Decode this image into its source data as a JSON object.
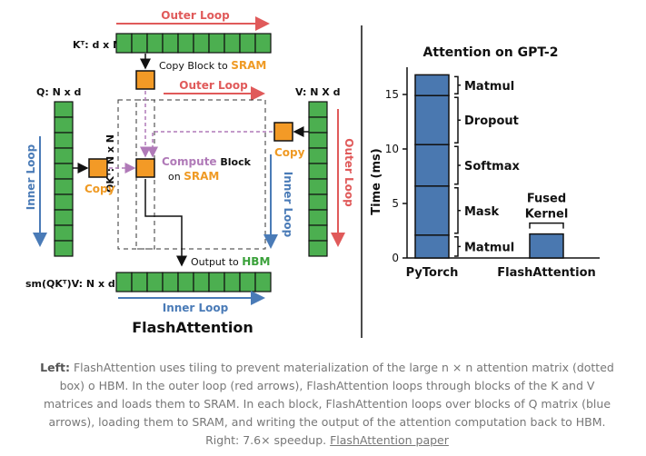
{
  "diagram": {
    "outer_loop_top": "Outer Loop",
    "outer_loop_mid": "Outer Loop",
    "outer_loop_right": "Outer Loop",
    "inner_loop_left": "Inner Loop",
    "inner_loop_right": "Inner Loop",
    "inner_loop_bottom": "Inner Loop",
    "kt_label": "Kᵀ: d x N",
    "q_label": "Q: N x d",
    "v_label": "V: N X d",
    "qkt_label": "QKᵀ: N x N",
    "output_label": "sm(QKᵀ)V: N x d",
    "copy_block_prefix": "Copy Block to ",
    "sram_word": "SRAM",
    "copy_left": "Copy",
    "copy_right": "Copy",
    "compute_word": "Compute",
    "block_word": " Block",
    "on_word": "on ",
    "sram_word2": "SRAM",
    "output_prefix": "Output to ",
    "hbm_word": "HBM",
    "title": "FlashAttention"
  },
  "chart_data": {
    "type": "bar",
    "title": "Attention on GPT-2",
    "ylabel": "Time (ms)",
    "ylim": [
      0,
      17.5
    ],
    "yticks": [
      0,
      5,
      10,
      15
    ],
    "categories": [
      "PyTorch",
      "FlashAttention"
    ],
    "stacks": [
      {
        "category": "PyTorch",
        "segments": [
          {
            "name": "Matmul",
            "value": 2.1
          },
          {
            "name": "Mask",
            "value": 4.5
          },
          {
            "name": "Softmax",
            "value": 3.8
          },
          {
            "name": "Dropout",
            "value": 4.5
          },
          {
            "name": "Matmul",
            "value": 1.9
          }
        ]
      },
      {
        "category": "FlashAttention",
        "segments": [
          {
            "name": "Fused Kernel",
            "value": 2.2
          }
        ]
      }
    ],
    "fused_label_line1": "Fused",
    "fused_label_line2": "Kernel",
    "bar_color": "#4a78b0"
  },
  "caption": {
    "left_bold": "Left:",
    "text": " FlashAttention uses tiling to prevent materialization of the large n × n attention matrix (dotted box) o HBM. In the outer loop (red arrows), FlashAttention loops through blocks of the K and V matrices and loads them to SRAM. In each block, FlashAttention loops over blocks of Q matrix (blue arrows), loading them to SRAM, and writing the output of the attention computation back to HBM. Right: 7.6× speedup. ",
    "link": "FlashAttention paper"
  },
  "colors": {
    "green": "#4caf50",
    "orange": "#f39a26",
    "red": "#e05a5a",
    "blue": "#4a7bb7",
    "purple": "#b07ab8",
    "bar": "#4a78b0"
  }
}
